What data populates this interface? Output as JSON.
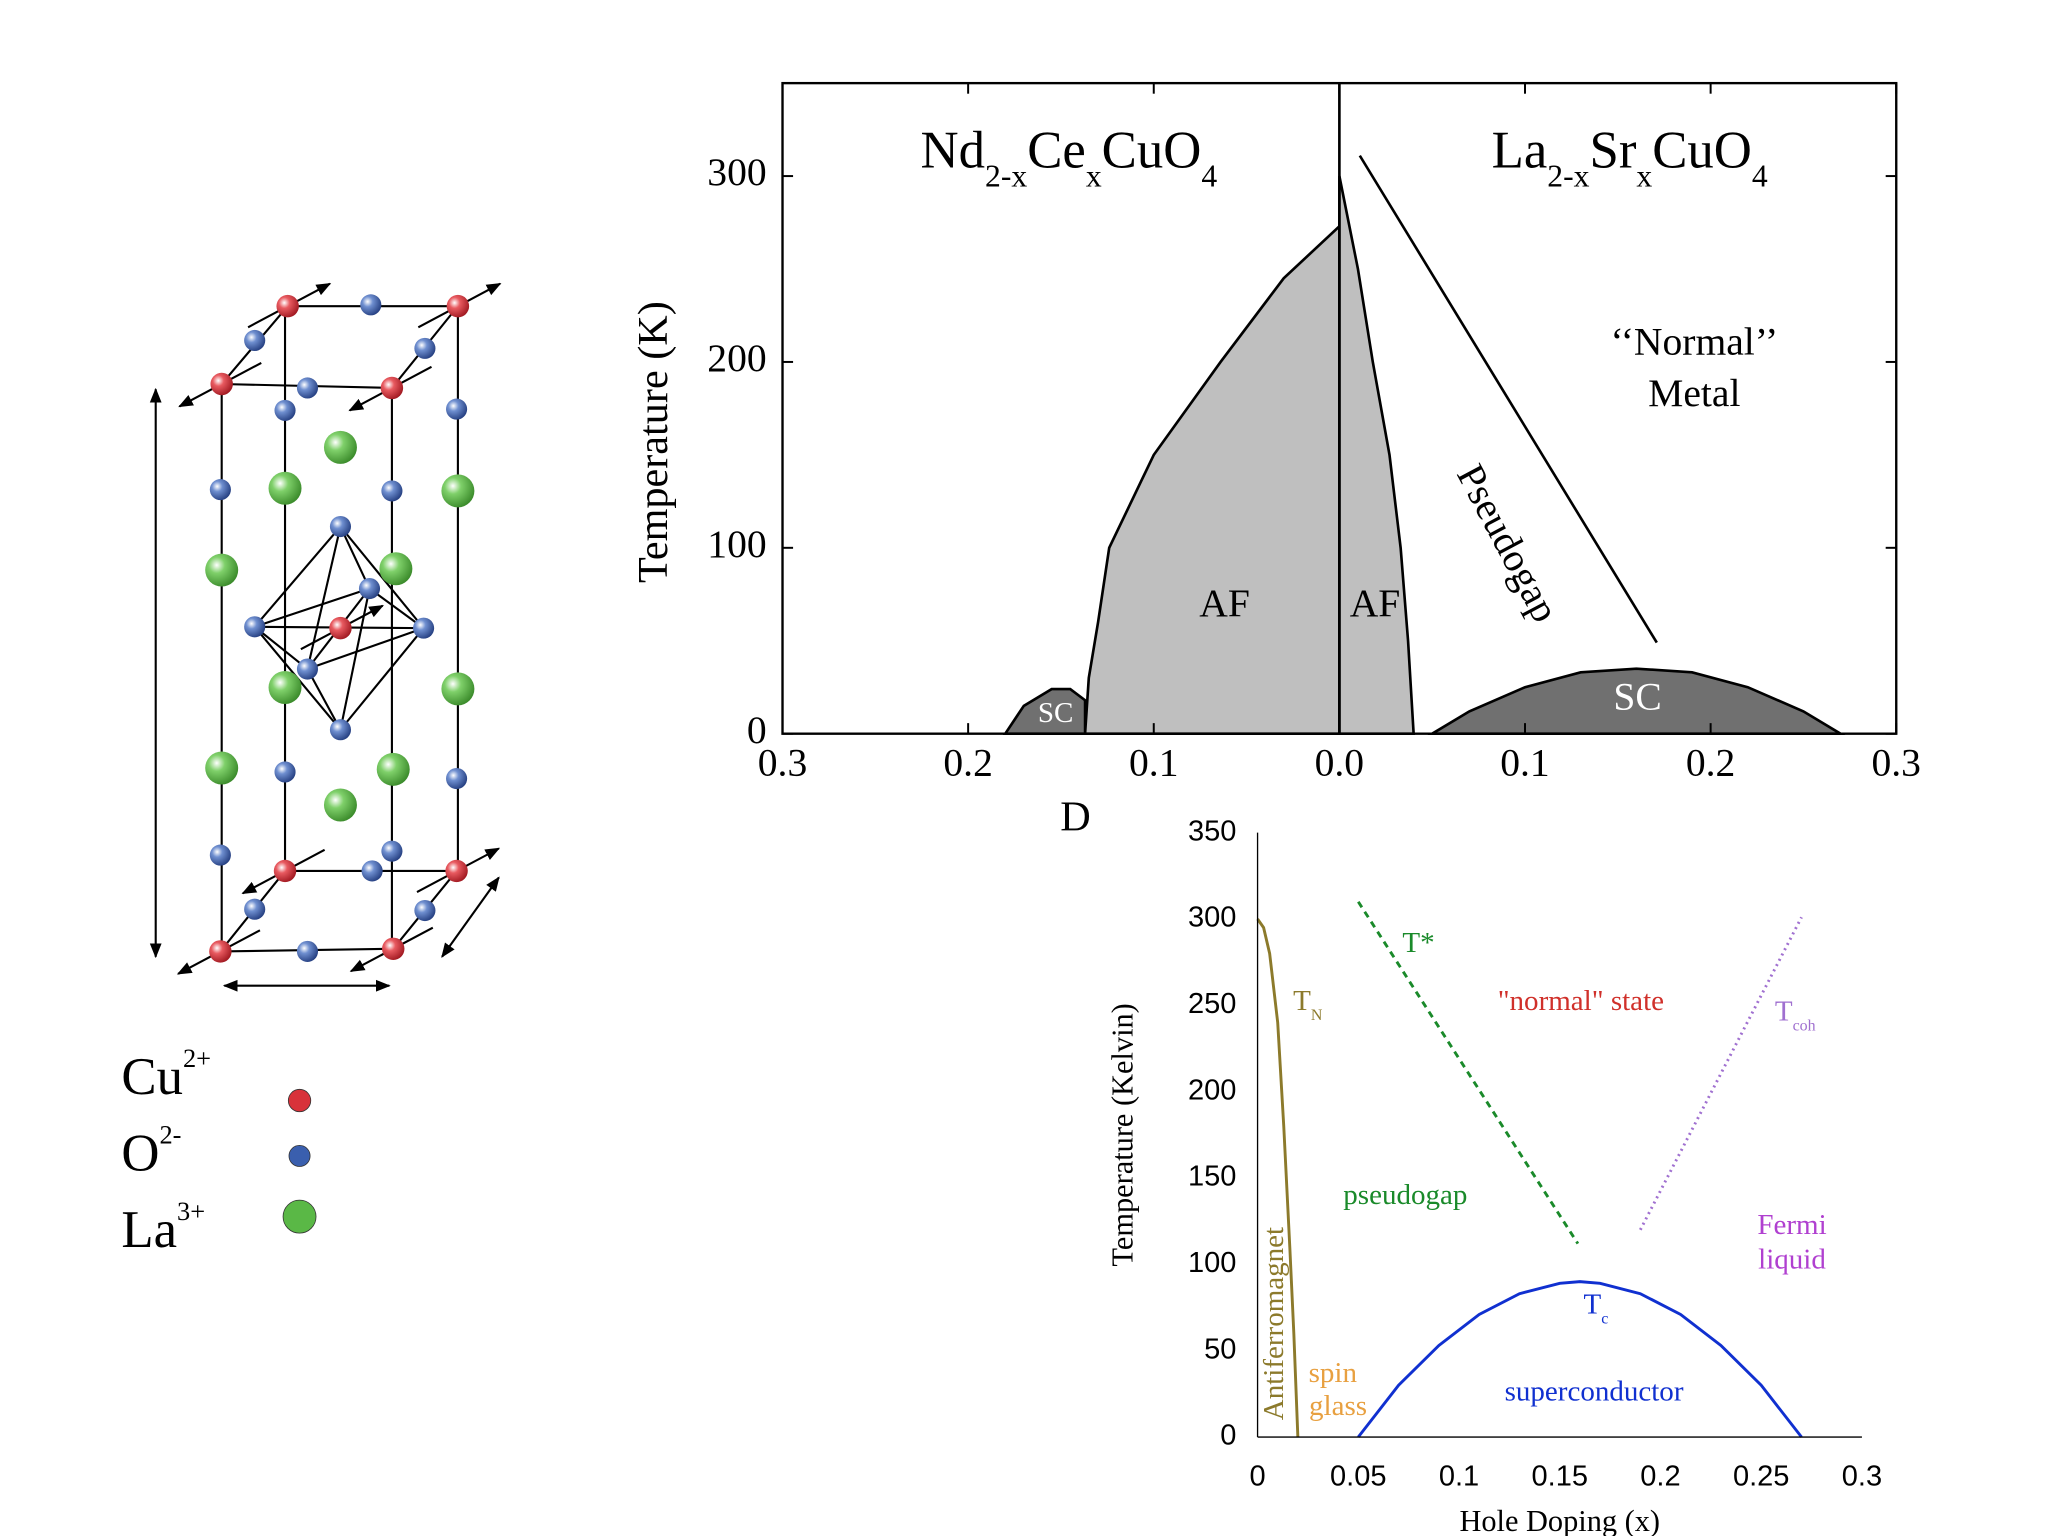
{
  "structure": {
    "legend": [
      {
        "ion": "Cu",
        "charge": "2+",
        "color": "#d8323a"
      },
      {
        "ion": "O",
        "charge": "2-",
        "color": "#3a5fae"
      },
      {
        "ion": "La",
        "charge": "3+",
        "color": "#5ab846"
      }
    ]
  },
  "chart_data": [
    {
      "type": "line",
      "titles": [
        [
          "Nd",
          "2-x",
          "Ce",
          "x",
          "CuO",
          "4"
        ],
        [
          "La",
          "2-x",
          "Sr",
          "x",
          "CuO",
          "4"
        ]
      ],
      "xlabel": "D",
      "ylabel": "Temperature  (K)",
      "xlim": [
        -0.3,
        0.3
      ],
      "ylim": [
        0,
        350
      ],
      "xticks": [
        {
          "value": -0.3,
          "label": "0.3"
        },
        {
          "value": -0.2,
          "label": "0.2"
        },
        {
          "value": -0.1,
          "label": "0.1"
        },
        {
          "value": 0,
          "label": "0.0"
        },
        0.1,
        0.2,
        0.3
      ],
      "yticks": [
        0,
        100,
        200,
        300
      ],
      "series": [
        {
          "color": "#000000",
          "fill": "#bfbfbf",
          "x": [
            -0.137,
            -0.135,
            -0.13,
            -0.124,
            -0.1,
            -0.064,
            -0.03,
            0,
            0
          ],
          "values": [
            0,
            30,
            60,
            100,
            150,
            200,
            245,
            273,
            0
          ]
        },
        {
          "color": "#000000",
          "fill": "#707070",
          "x": [
            -0.18,
            -0.17,
            -0.155,
            -0.145,
            -0.137,
            -0.137
          ],
          "values": [
            0,
            15,
            24,
            24,
            18,
            0
          ]
        },
        {
          "color": "#000000",
          "fill": "#bfbfbf",
          "x": [
            0,
            0,
            0.01,
            0.018,
            0.027,
            0.033,
            0.037,
            0.04
          ],
          "values": [
            0,
            300,
            250,
            200,
            150,
            100,
            50,
            0
          ]
        },
        {
          "color": "#000000",
          "fill": "#707070",
          "x": [
            0.05,
            0.07,
            0.1,
            0.13,
            0.16,
            0.19,
            0.22,
            0.25,
            0.27
          ],
          "values": [
            0,
            12,
            25,
            33,
            35,
            33,
            25,
            12,
            0
          ]
        },
        {
          "color": "#000000",
          "x": [
            0.011,
            0.171
          ],
          "values": [
            311,
            49
          ]
        },
        {
          "color": "#000000",
          "x": [
            0,
            0
          ],
          "values": [
            0,
            350
          ]
        }
      ],
      "annotations": [
        {
          "text": "AF"
        },
        {
          "text": "AF"
        },
        {
          "text": "SC"
        },
        {
          "text": "SC"
        },
        {
          "text": "Pseudogap"
        },
        {
          "text": "‘‘Normal’’"
        },
        {
          "text": "Metal"
        }
      ]
    },
    {
      "type": "line",
      "xlabel": "Hole Doping (x)",
      "ylabel": "Temperature (Kelvin)",
      "xlim": [
        0,
        0.3
      ],
      "ylim": [
        0,
        350
      ],
      "xticks": [
        0,
        0.05,
        0.1,
        0.15,
        0.2,
        0.25,
        0.3
      ],
      "yticks": [
        0,
        50,
        100,
        150,
        200,
        250,
        300,
        350
      ],
      "series": [
        {
          "color": "#8c7a2b",
          "x": [
            0,
            0.003,
            0.006,
            0.01,
            0.013,
            0.016,
            0.018,
            0.02
          ],
          "values": [
            300,
            295,
            280,
            240,
            180,
            110,
            60,
            0
          ]
        },
        {
          "color": "#1a8a2a",
          "dash": "dashed",
          "x": [
            0.05,
            0.159
          ],
          "values": [
            310,
            112
          ]
        },
        {
          "color": "#a070d0",
          "dash": "dotted",
          "x": [
            0.19,
            0.27
          ],
          "values": [
            120,
            301
          ]
        },
        {
          "color": "#1030d0",
          "x": [
            0.05,
            0.07,
            0.09,
            0.11,
            0.13,
            0.15,
            0.16,
            0.17,
            0.19,
            0.21,
            0.23,
            0.25,
            0.27
          ],
          "values": [
            0,
            30,
            53,
            71,
            83,
            89,
            90,
            89,
            83,
            71,
            53,
            30,
            0
          ]
        }
      ],
      "annotations": [
        {
          "text": "T*"
        },
        {
          "text": "T",
          "sub": "N"
        },
        {
          "text": "\"normal\" state"
        },
        {
          "text": "T",
          "sub": "coh"
        },
        {
          "text": "pseudogap"
        },
        {
          "text": "Fermi"
        },
        {
          "text": "liquid"
        },
        {
          "text": "T",
          "sub": "c"
        },
        {
          "text": "Antiferromagnet"
        },
        {
          "text": "spin"
        },
        {
          "text": "glass"
        },
        {
          "text": "superconductor"
        }
      ]
    }
  ]
}
